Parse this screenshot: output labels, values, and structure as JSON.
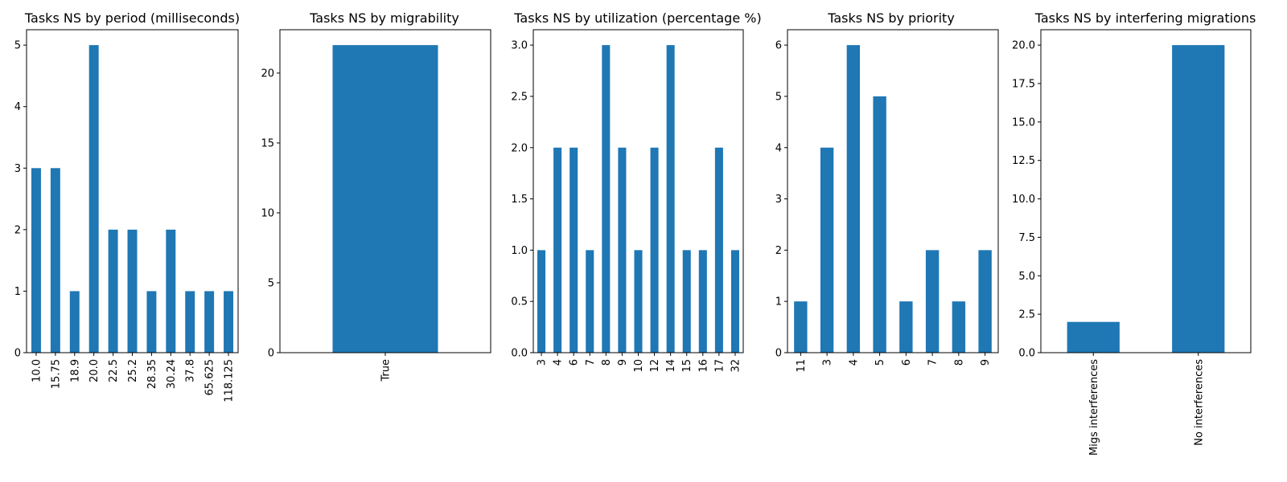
{
  "figure": {
    "bar_color": "#1f77b4",
    "background": "#ffffff"
  },
  "chart_data": [
    {
      "type": "bar",
      "title": "Tasks NS by period (milliseconds)",
      "xlabel": "",
      "ylabel": "",
      "categories": [
        "10.0",
        "15.75",
        "18.9",
        "20.0",
        "22.5",
        "25.2",
        "28.35",
        "30.24",
        "37.8",
        "65.625",
        "118.125"
      ],
      "values": [
        3,
        3,
        1,
        5,
        2,
        2,
        1,
        2,
        1,
        1,
        1
      ],
      "ylim": [
        0,
        5.25
      ],
      "yticks": [
        "0",
        "1",
        "2",
        "3",
        "4",
        "5"
      ],
      "grid": false,
      "legend": "none"
    },
    {
      "type": "bar",
      "title": "Tasks NS by migrability",
      "xlabel": "",
      "ylabel": "",
      "categories": [
        "True"
      ],
      "values": [
        22
      ],
      "ylim": [
        0,
        23.1
      ],
      "yticks": [
        "0",
        "5",
        "10",
        "15",
        "20"
      ],
      "grid": false,
      "legend": "none"
    },
    {
      "type": "bar",
      "title": "Tasks NS by utilization (percentage %)",
      "xlabel": "",
      "ylabel": "",
      "categories": [
        "3",
        "4",
        "6",
        "7",
        "8",
        "9",
        "10",
        "12",
        "14",
        "15",
        "16",
        "17",
        "32"
      ],
      "values": [
        1,
        2,
        2,
        1,
        3,
        2,
        1,
        2,
        3,
        1,
        1,
        2,
        1
      ],
      "ylim": [
        0,
        3.15
      ],
      "yticks": [
        "0.0",
        "0.5",
        "1.0",
        "1.5",
        "2.0",
        "2.5",
        "3.0"
      ],
      "grid": false,
      "legend": "none"
    },
    {
      "type": "bar",
      "title": "Tasks NS by priority",
      "xlabel": "",
      "ylabel": "",
      "categories": [
        "11",
        "3",
        "4",
        "5",
        "6",
        "7",
        "8",
        "9"
      ],
      "values": [
        1,
        4,
        6,
        5,
        1,
        2,
        1,
        2
      ],
      "ylim": [
        0,
        6.3
      ],
      "yticks": [
        "0",
        "1",
        "2",
        "3",
        "4",
        "5",
        "6"
      ],
      "grid": false,
      "legend": "none"
    },
    {
      "type": "bar",
      "title": "Tasks NS by interfering migrations",
      "xlabel": "",
      "ylabel": "",
      "categories": [
        "Migs interferences",
        "No interferences"
      ],
      "values": [
        2,
        20
      ],
      "ylim": [
        0,
        21
      ],
      "yticks": [
        "0.0",
        "2.5",
        "5.0",
        "7.5",
        "10.0",
        "12.5",
        "15.0",
        "17.5",
        "20.0"
      ],
      "grid": false,
      "legend": "none"
    }
  ]
}
